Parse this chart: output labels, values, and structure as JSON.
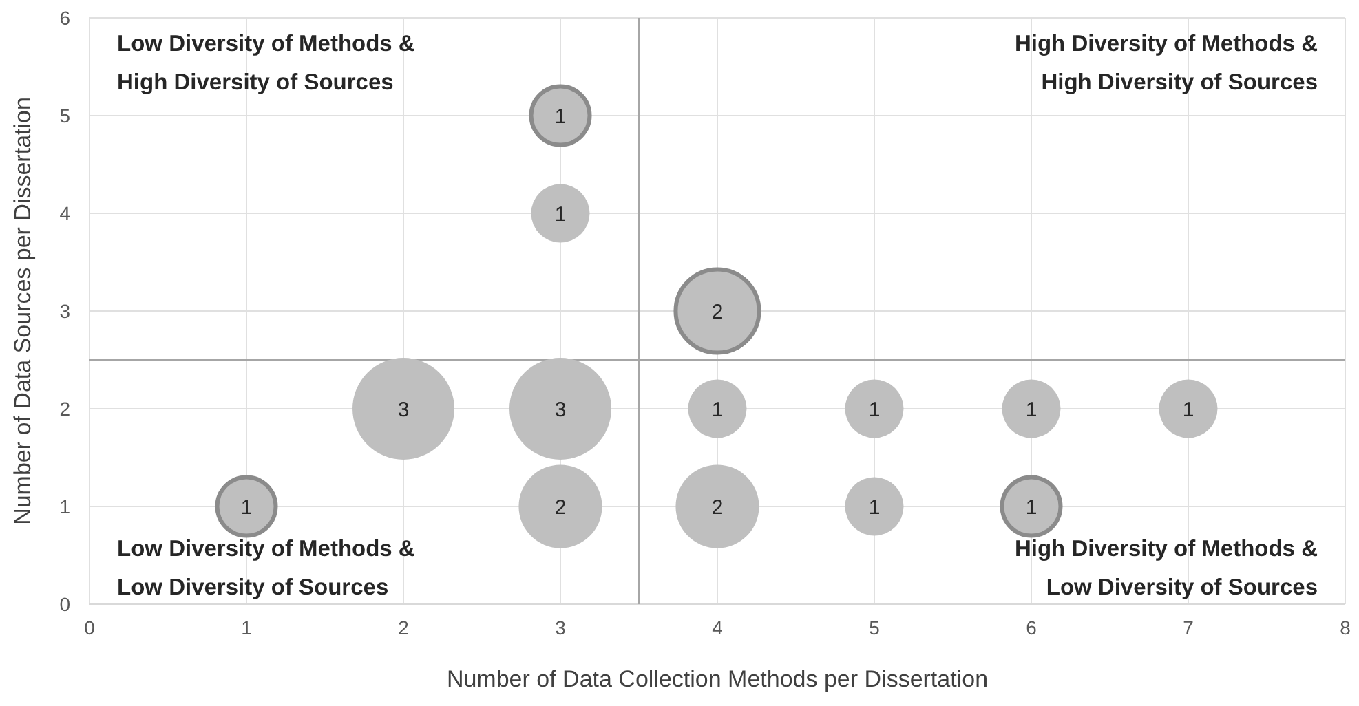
{
  "chart_data": {
    "type": "bubble",
    "xlabel": "Number of Data Collection Methods per Dissertation",
    "ylabel": "Number of Data Sources per Dissertation",
    "xlim": [
      0,
      8
    ],
    "xticks": [
      0,
      1,
      2,
      3,
      4,
      5,
      6,
      7,
      8
    ],
    "ylim": [
      0,
      6
    ],
    "yticks": [
      0,
      1,
      2,
      3,
      4,
      5,
      6
    ],
    "grid": true,
    "series": [
      {
        "color": "#bfbfbf",
        "x": [
          3,
          2,
          3,
          4,
          5,
          6,
          7,
          3,
          4,
          5
        ],
        "values": [
          4,
          2,
          2,
          2,
          2,
          2,
          2,
          1,
          1,
          1
        ],
        "sizes": [
          0.33,
          1,
          1,
          0.33,
          0.33,
          0.33,
          0.33,
          0.67,
          0.67,
          0.33
        ]
      },
      {
        "color": "#bfbfbf",
        "x": [
          3,
          4,
          1,
          6
        ],
        "values": [
          5,
          3,
          1,
          1
        ],
        "sizes": [
          0.33,
          0.67,
          0.33,
          0.33
        ]
      }
    ],
    "ref_lines": [
      {
        "axis": "x",
        "value": 3.5,
        "color": "#a6a6a6"
      },
      {
        "axis": "y",
        "value": 2.5,
        "color": "#a6a6a6"
      }
    ],
    "annotations": [
      "Low Diversity of Methods &\nHigh Diversity of Sources",
      "High Diversity of Methods &\nHigh Diversity of Sources",
      "Low Diversity of Methods &\nLow Diversity of Sources",
      "High Diversity of Methods &\nLow Diversity of Sources",
      {
        "text": "1",
        "x": 3,
        "y": 5
      },
      {
        "text": "1",
        "x": 3,
        "y": 4
      },
      {
        "text": "2",
        "x": 4,
        "y": 3
      },
      {
        "text": "3",
        "x": 2,
        "y": 2
      },
      {
        "text": "3",
        "x": 3,
        "y": 2
      },
      {
        "text": "1",
        "x": 4,
        "y": 2
      },
      {
        "text": "1",
        "x": 5,
        "y": 2
      },
      {
        "text": "1",
        "x": 6,
        "y": 2
      },
      {
        "text": "1",
        "x": 7,
        "y": 2
      },
      {
        "text": "1",
        "x": 1,
        "y": 1
      },
      {
        "text": "2",
        "x": 3,
        "y": 1
      },
      {
        "text": "2",
        "x": 4,
        "y": 1
      },
      {
        "text": "1",
        "x": 5,
        "y": 1
      },
      {
        "text": "1",
        "x": 6,
        "y": 1
      }
    ]
  }
}
